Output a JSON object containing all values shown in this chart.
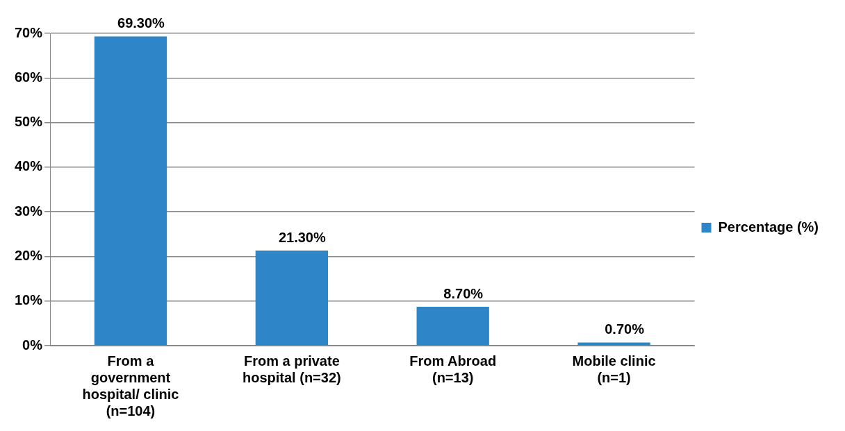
{
  "chart_data": {
    "type": "bar",
    "categories": [
      "From a government hospital/ clinic (n=104)",
      "From a private hospital (n=32)",
      "From Abroad (n=13)",
      "Mobile clinic (n=1)"
    ],
    "series": [
      {
        "name": "Percentage (%)",
        "color": "#2e86c8",
        "values": [
          69.3,
          21.3,
          8.7,
          0.7
        ],
        "value_labels": [
          "69.30%",
          "21.30%",
          "8.70%",
          "0.70%"
        ]
      }
    ],
    "ylim": [
      0,
      70
    ],
    "yticks": [
      {
        "value": 0,
        "label": "0%"
      },
      {
        "value": 10,
        "label": "10%"
      },
      {
        "value": 20,
        "label": "20%"
      },
      {
        "value": 30,
        "label": "30%"
      },
      {
        "value": 40,
        "label": "40%"
      },
      {
        "value": 50,
        "label": "50%"
      },
      {
        "value": 60,
        "label": "60%"
      },
      {
        "value": 70,
        "label": "70%"
      }
    ],
    "grid": "y",
    "legend": "right"
  }
}
